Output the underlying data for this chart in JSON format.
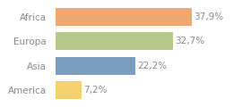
{
  "categories": [
    "Africa",
    "Europa",
    "Asia",
    "America"
  ],
  "values": [
    37.9,
    32.7,
    22.2,
    7.2
  ],
  "labels": [
    "37,9%",
    "32,7%",
    "22,2%",
    "7,2%"
  ],
  "bar_colors": [
    "#f0a870",
    "#b5c98a",
    "#7b9dc0",
    "#f5d06e"
  ],
  "background_color": "#ffffff",
  "xlim": [
    0,
    46
  ],
  "bar_height": 0.72,
  "label_fontsize": 7.5,
  "category_fontsize": 7.5,
  "text_color": "#888888"
}
